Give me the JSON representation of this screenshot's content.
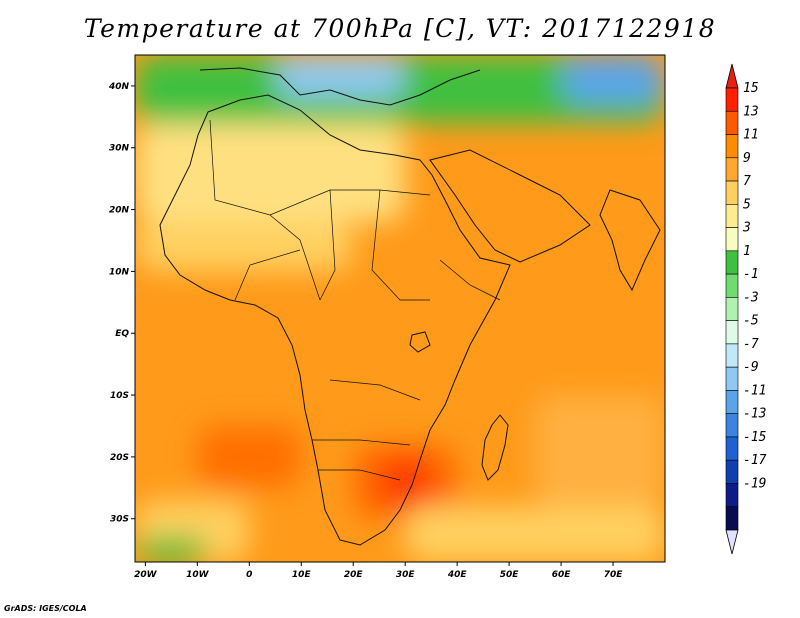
{
  "title": "Temperature at 700hPa [C], VT: 2017122918",
  "credit": "GrADS: IGES/COLA",
  "map": {
    "lon_range": [
      -22,
      80
    ],
    "lat_range": [
      -37,
      45
    ],
    "x_ticks": [
      {
        "value": -20,
        "label": "20W"
      },
      {
        "value": -10,
        "label": "10W"
      },
      {
        "value": 0,
        "label": "0"
      },
      {
        "value": 10,
        "label": "10E"
      },
      {
        "value": 20,
        "label": "20E"
      },
      {
        "value": 30,
        "label": "30E"
      },
      {
        "value": 40,
        "label": "40E"
      },
      {
        "value": 50,
        "label": "50E"
      },
      {
        "value": 60,
        "label": "60E"
      },
      {
        "value": 70,
        "label": "70E"
      }
    ],
    "y_ticks": [
      {
        "value": 40,
        "label": "40N"
      },
      {
        "value": 30,
        "label": "30N"
      },
      {
        "value": 20,
        "label": "20N"
      },
      {
        "value": 10,
        "label": "10N"
      },
      {
        "value": 0,
        "label": "EQ"
      },
      {
        "value": -10,
        "label": "10S"
      },
      {
        "value": -20,
        "label": "20S"
      },
      {
        "value": -30,
        "label": "30S"
      }
    ]
  },
  "legend": {
    "labels": [
      "15",
      "13",
      "11",
      "9",
      "7",
      "5",
      "3",
      "1",
      "-1",
      "-3",
      "-5",
      "-7",
      "-9",
      "-11",
      "-13",
      "-15",
      "-17",
      "-19"
    ],
    "colors": [
      "#ff2000",
      "#ff5a00",
      "#ff8c00",
      "#ffa830",
      "#ffd060",
      "#ffec90",
      "#f8fcc0",
      "#40c040",
      "#70dc70",
      "#b0f0b0",
      "#e0fae8",
      "#c0e8f8",
      "#90c8f0",
      "#5ca4e8",
      "#3c84e0",
      "#2060d0",
      "#1040b0",
      "#0c1c88",
      "#080c50"
    ],
    "top_arrow_color": "#e82010",
    "bottom_arrow_color": "#e0e0ff"
  },
  "temperature_field": {
    "background": "#ff9a1a",
    "regions": [
      {
        "color": "#40c040",
        "lon": [
          -22,
          80
        ],
        "lat": [
          34,
          45
        ]
      },
      {
        "color": "#90c8f0",
        "lon": [
          5,
          30
        ],
        "lat": [
          38,
          45
        ]
      },
      {
        "color": "#5ca4e8",
        "lon": [
          60,
          80
        ],
        "lat": [
          37,
          45
        ]
      },
      {
        "color": "#ffe080",
        "lon": [
          -22,
          30
        ],
        "lat": [
          18,
          34
        ]
      },
      {
        "color": "#ffd060",
        "lon": [
          -22,
          20
        ],
        "lat": [
          10,
          18
        ]
      },
      {
        "color": "#ff6a00",
        "lon": [
          20,
          40
        ],
        "lat": [
          -30,
          -18
        ]
      },
      {
        "color": "#ff3a00",
        "lon": [
          25,
          35
        ],
        "lat": [
          -28,
          -20
        ]
      },
      {
        "color": "#ff7000",
        "lon": [
          -10,
          10
        ],
        "lat": [
          -25,
          -15
        ]
      },
      {
        "color": "#ffd060",
        "lon": [
          -22,
          0
        ],
        "lat": [
          -37,
          -27
        ]
      },
      {
        "color": "#40c040",
        "lon": [
          -22,
          -8
        ],
        "lat": [
          -37,
          -33
        ]
      },
      {
        "color": "#ffd060",
        "lon": [
          30,
          80
        ],
        "lat": [
          -37,
          -28
        ]
      },
      {
        "color": "#ffb040",
        "lon": [
          55,
          80
        ],
        "lat": [
          -28,
          -10
        ]
      }
    ]
  }
}
